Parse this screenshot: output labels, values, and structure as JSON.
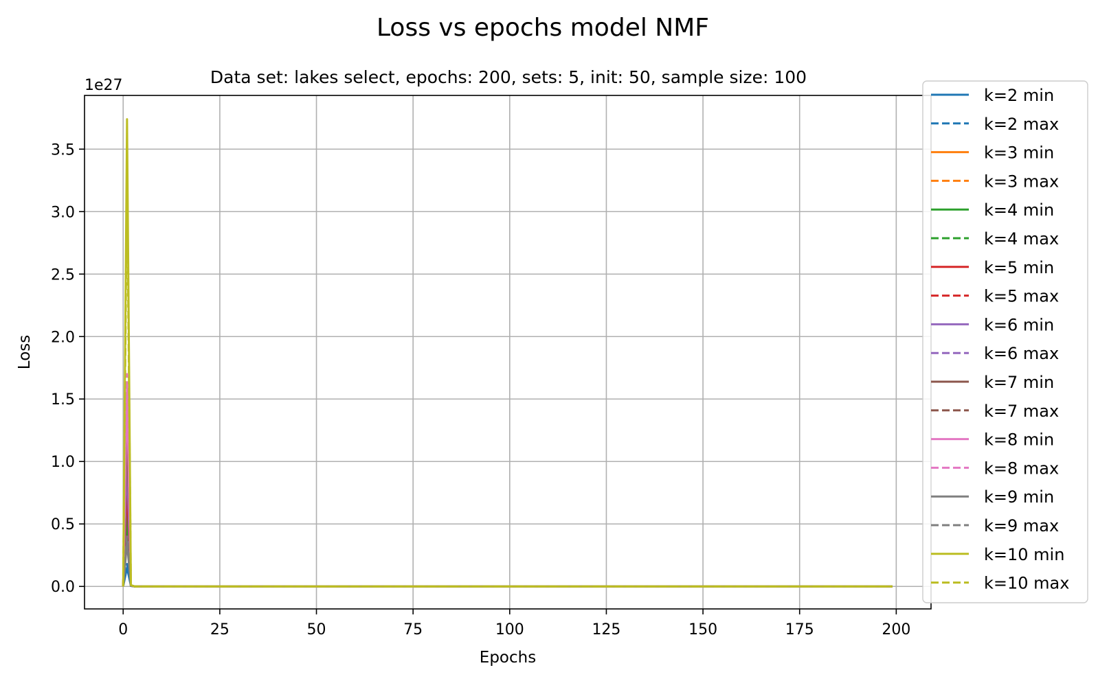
{
  "chart_data": {
    "type": "line",
    "title": "Loss vs epochs model NMF",
    "subtitle": "Data set:  lakes select, epochs: 200, sets: 5, init: 50, sample size: 100",
    "xlabel": "Epochs",
    "ylabel": "Loss",
    "offset_text": "1e27",
    "y_scale": 1e+27,
    "xlim": [
      -10,
      209
    ],
    "ylim": [
      -0.18,
      3.93
    ],
    "grid": true,
    "legend_position": "right",
    "x_ticks": [
      0,
      25,
      50,
      75,
      100,
      125,
      150,
      175,
      200
    ],
    "x_tick_labels": [
      "0",
      "25",
      "50",
      "75",
      "100",
      "125",
      "150",
      "175",
      "200"
    ],
    "y_ticks": [
      0.0,
      0.5,
      1.0,
      1.5,
      2.0,
      2.5,
      3.0,
      3.5
    ],
    "y_tick_labels": [
      "0.0",
      "0.5",
      "1.0",
      "1.5",
      "2.0",
      "2.5",
      "3.0",
      "3.5"
    ],
    "x": [
      0,
      1,
      2,
      3,
      199
    ],
    "series": [
      {
        "name": "k=2 min",
        "color": "#1f77b4",
        "dash": false,
        "values": [
          0,
          0.15,
          0.004,
          0,
          0
        ]
      },
      {
        "name": "k=2 max",
        "color": "#1f77b4",
        "dash": true,
        "values": [
          0,
          0.18,
          0.004,
          0,
          0
        ]
      },
      {
        "name": "k=3 min",
        "color": "#ff7f0e",
        "dash": false,
        "values": [
          0,
          0.4,
          0.005,
          0,
          0
        ]
      },
      {
        "name": "k=3 max",
        "color": "#ff7f0e",
        "dash": true,
        "values": [
          0,
          0.45,
          0.005,
          0,
          0
        ]
      },
      {
        "name": "k=4 min",
        "color": "#2ca02c",
        "dash": false,
        "values": [
          0,
          0.55,
          0.005,
          0,
          0
        ]
      },
      {
        "name": "k=4 max",
        "color": "#2ca02c",
        "dash": true,
        "values": [
          0,
          0.6,
          0.005,
          0,
          0
        ]
      },
      {
        "name": "k=5 min",
        "color": "#d62728",
        "dash": false,
        "values": [
          0,
          0.8,
          0.006,
          0,
          0
        ]
      },
      {
        "name": "k=5 max",
        "color": "#d62728",
        "dash": true,
        "values": [
          0,
          0.85,
          0.006,
          0,
          0
        ]
      },
      {
        "name": "k=6 min",
        "color": "#9467bd",
        "dash": false,
        "values": [
          0,
          1.0,
          0.006,
          0,
          0
        ]
      },
      {
        "name": "k=6 max",
        "color": "#9467bd",
        "dash": true,
        "values": [
          0,
          1.1,
          0.006,
          0,
          0
        ]
      },
      {
        "name": "k=7 min",
        "color": "#8c564b",
        "dash": false,
        "values": [
          0,
          1.3,
          0.007,
          0,
          0
        ]
      },
      {
        "name": "k=7 max",
        "color": "#8c564b",
        "dash": true,
        "values": [
          0,
          1.4,
          0.007,
          0,
          0
        ]
      },
      {
        "name": "k=8 min",
        "color": "#e377c2",
        "dash": false,
        "values": [
          0,
          1.6,
          0.007,
          0,
          0
        ]
      },
      {
        "name": "k=8 max",
        "color": "#e377c2",
        "dash": true,
        "values": [
          0,
          1.7,
          0.007,
          0,
          0
        ]
      },
      {
        "name": "k=9 min",
        "color": "#7f7f7f",
        "dash": false,
        "values": [
          0,
          0.35,
          0.005,
          0,
          0
        ]
      },
      {
        "name": "k=9 max",
        "color": "#7f7f7f",
        "dash": true,
        "values": [
          0,
          0.4,
          0.005,
          0,
          0
        ]
      },
      {
        "name": "k=10 min",
        "color": "#bcbd22",
        "dash": false,
        "values": [
          0,
          3.74,
          0.01,
          0,
          0
        ]
      },
      {
        "name": "k=10 max",
        "color": "#bcbd22",
        "dash": true,
        "values": [
          0,
          3.3,
          0.01,
          0,
          0
        ]
      }
    ]
  }
}
